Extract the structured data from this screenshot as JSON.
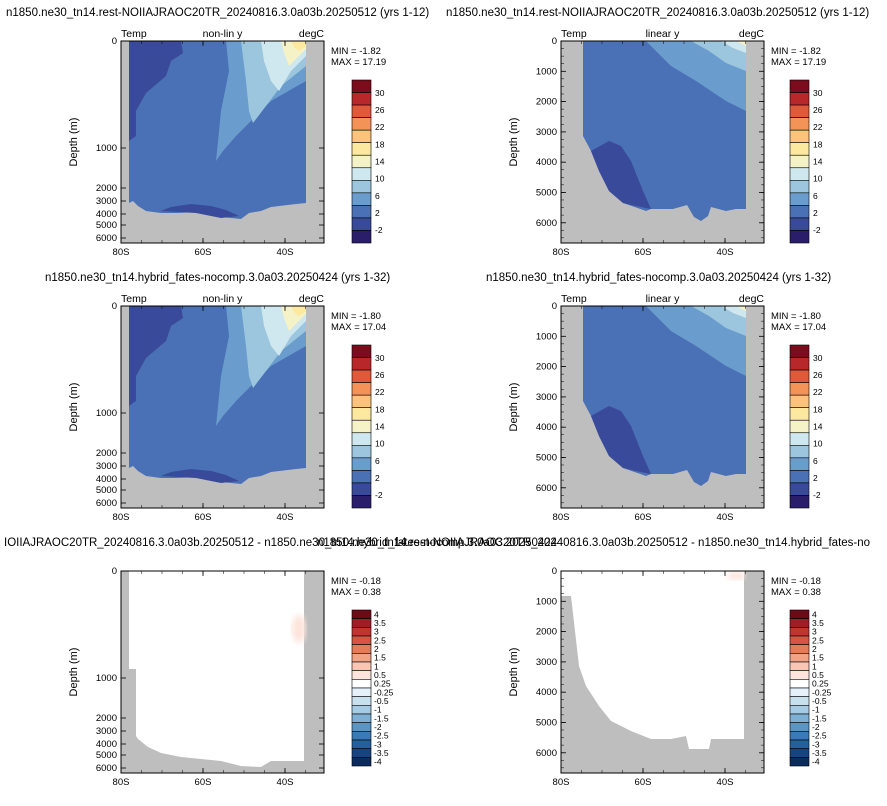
{
  "chart_data": [
    {
      "type": "heatmap",
      "title": "n1850.ne30_tn14.rest-NOIIAJRAOC20TR_20240816.3.0a03b.20250512 (yrs 1-12)",
      "left_label": "Temp",
      "center_label": "non-lin y",
      "right_label": "degC",
      "ylabel": "Depth (m)",
      "y_scale": "non-linear",
      "y_ticks": [
        "0",
        "1000",
        "2000",
        "3000",
        "4000",
        "5000",
        "6000"
      ],
      "x_ticks": [
        "80S",
        "60S",
        "40S"
      ],
      "min_label": "MIN = -1.82",
      "max_label": "MAX = 17.19",
      "colorbar_labels": [
        "30",
        "26",
        "22",
        "18",
        "14",
        "10",
        "6",
        "2",
        "-2"
      ]
    },
    {
      "type": "heatmap",
      "title": "n1850.ne30_tn14.rest-NOIIAJRAOC20TR_20240816.3.0a03b.20250512 (yrs 1-12)",
      "left_label": "Temp",
      "center_label": "linear y",
      "right_label": "degC",
      "ylabel": "Depth (m)",
      "y_scale": "linear",
      "y_ticks": [
        "0",
        "1000",
        "2000",
        "3000",
        "4000",
        "5000",
        "6000"
      ],
      "x_ticks": [
        "80S",
        "60S",
        "40S"
      ],
      "min_label": "MIN = -1.82",
      "max_label": "MAX = 17.19",
      "colorbar_labels": [
        "30",
        "26",
        "22",
        "18",
        "14",
        "10",
        "6",
        "2",
        "-2"
      ]
    },
    {
      "type": "heatmap",
      "title": "n1850.ne30_tn14.hybrid_fates-nocomp.3.0a03.20250424 (yrs 1-32)",
      "left_label": "Temp",
      "center_label": "non-lin y",
      "right_label": "degC",
      "ylabel": "Depth (m)",
      "y_scale": "non-linear",
      "y_ticks": [
        "0",
        "1000",
        "2000",
        "3000",
        "4000",
        "5000",
        "6000"
      ],
      "x_ticks": [
        "80S",
        "60S",
        "40S"
      ],
      "min_label": "MIN = -1.80",
      "max_label": "MAX = 17.04",
      "colorbar_labels": [
        "30",
        "26",
        "22",
        "18",
        "14",
        "10",
        "6",
        "2",
        "-2"
      ]
    },
    {
      "type": "heatmap",
      "title": "n1850.ne30_tn14.hybrid_fates-nocomp.3.0a03.20250424 (yrs 1-32)",
      "left_label": "Temp",
      "center_label": "linear y",
      "right_label": "degC",
      "ylabel": "Depth (m)",
      "y_scale": "linear",
      "y_ticks": [
        "0",
        "1000",
        "2000",
        "3000",
        "4000",
        "5000",
        "6000"
      ],
      "x_ticks": [
        "80S",
        "60S",
        "40S"
      ],
      "min_label": "MIN = -1.80",
      "max_label": "MAX = 17.04",
      "colorbar_labels": [
        "30",
        "26",
        "22",
        "18",
        "14",
        "10",
        "6",
        "2",
        "-2"
      ]
    },
    {
      "type": "heatmap",
      "title": "IOIIAJRAOC20TR_20240816.3.0a03b.20250512 - n1850.ne30_tn14.hybrid_fates-nocomp.3.0a03.20250424",
      "left_label": "",
      "center_label": "",
      "right_label": "",
      "ylabel": "Depth (m)",
      "y_scale": "non-linear",
      "y_ticks": [
        "0",
        "1000",
        "2000",
        "3000",
        "4000",
        "5000",
        "6000"
      ],
      "x_ticks": [
        "80S",
        "60S",
        "40S"
      ],
      "min_label": "MIN = -0.18",
      "max_label": "MAX =  0.38",
      "colorbar_labels": [
        "4",
        "3.5",
        "3",
        "2.5",
        "2",
        "1.5",
        "1",
        "0.5",
        "0.25",
        "-0.25",
        "-0.5",
        "-1",
        "-1.5",
        "-2",
        "-2.5",
        "-3",
        "-3.5",
        "-4"
      ]
    },
    {
      "type": "heatmap",
      "title": "n1850.ne30_tn14.rest-NOIIAJRAOC20TR_20240816.3.0a03b.20250512 - n1850.ne30_tn14.hybrid_fates-no",
      "left_label": "",
      "center_label": "",
      "right_label": "",
      "ylabel": "Depth (m)",
      "y_scale": "linear",
      "y_ticks": [
        "0",
        "1000",
        "2000",
        "3000",
        "4000",
        "5000",
        "6000"
      ],
      "x_ticks": [
        "80S",
        "60S",
        "40S"
      ],
      "min_label": "MIN = -0.18",
      "max_label": "MAX =  0.38",
      "colorbar_labels": [
        "4",
        "3.5",
        "3",
        "2.5",
        "2",
        "1.5",
        "1",
        "0.5",
        "0.25",
        "-0.25",
        "-0.5",
        "-1",
        "-1.5",
        "-2",
        "-2.5",
        "-3",
        "-3.5",
        "-4"
      ]
    }
  ],
  "colors": {
    "land": "#bebebe",
    "temperature_palette": [
      "#2a1e6b",
      "#3a4a9a",
      "#4a70b5",
      "#6a9ccd",
      "#9cc6dd",
      "#cfe7ee",
      "#f6f2c8",
      "#fde8a0",
      "#fbc47a",
      "#f39358",
      "#e05a3a",
      "#b8282a",
      "#7a0c1c"
    ],
    "difference_palette": [
      "#0b2a5e",
      "#17447f",
      "#23609f",
      "#3a7ab5",
      "#5996c6",
      "#7eb0d6",
      "#a6cbe4",
      "#c9e0ef",
      "#e6f0f8",
      "#ffffff",
      "#fde4dc",
      "#f9c6b4",
      "#f2a285",
      "#e67b5c",
      "#d65542",
      "#c03530",
      "#a01c26",
      "#6e0a16"
    ]
  }
}
